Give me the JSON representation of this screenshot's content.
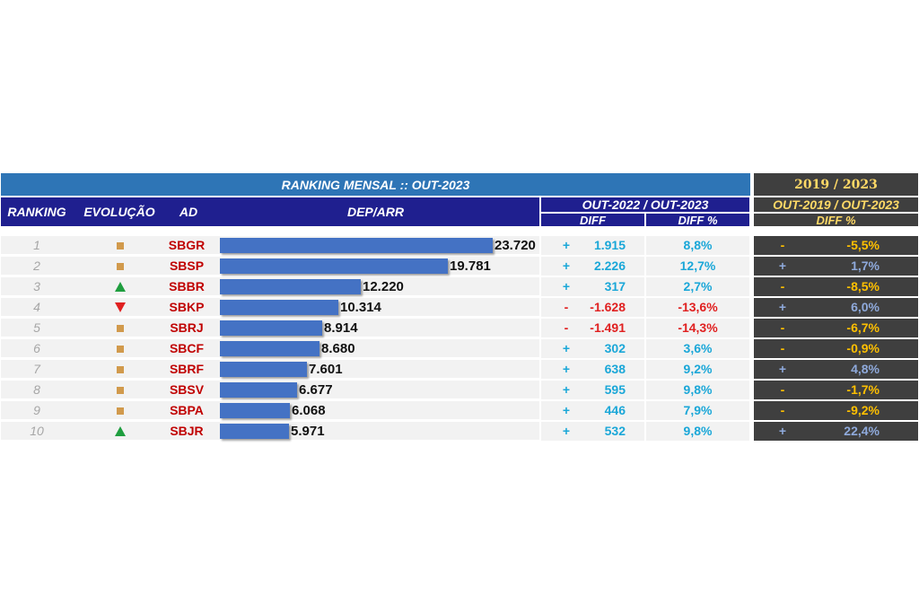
{
  "header": {
    "title": "RANKING MENSAL :: OUT-2023",
    "period_top": "2019 / 2023",
    "columns": {
      "ranking": "RANKING",
      "evolucao": "EVOLUÇÃO",
      "ad": "AD",
      "dep_arr": "DEP/ARR"
    },
    "group_recent": "OUT-2022 / OUT-2023",
    "group_recent_diff": "DIFF",
    "group_recent_pct": "DIFF %",
    "group_long": "OUT-2019 / OUT-2023",
    "group_long_pct": "DIFF %"
  },
  "colors": {
    "bar": "#4472c4",
    "up": "#1f9e3f",
    "down": "#e02020",
    "stable": "#d19a4c",
    "ad": "#c00000",
    "positive": "#1aa7d8",
    "negative": "#e02020",
    "long_positive": "#8faadc",
    "long_negative": "#ffc000"
  },
  "chart_data": {
    "type": "table",
    "title": "RANKING MENSAL :: OUT-2023",
    "columns": [
      "RANKING",
      "EVOLUÇÃO",
      "AD",
      "DEP/ARR",
      "DIFF",
      "DIFF %",
      "DIFF %"
    ],
    "bar_max": 23720,
    "rows": [
      {
        "rank": "1",
        "evolution": "stable",
        "ad": "SBGR",
        "value": 23720,
        "value_label": "23.720",
        "diff_sign": "+",
        "diff": "1.915",
        "diff_pct": "8,8%",
        "long_sign": "-",
        "long_pct": "-5,5%"
      },
      {
        "rank": "2",
        "evolution": "stable",
        "ad": "SBSP",
        "value": 19781,
        "value_label": "19.781",
        "diff_sign": "+",
        "diff": "2.226",
        "diff_pct": "12,7%",
        "long_sign": "+",
        "long_pct": "1,7%"
      },
      {
        "rank": "3",
        "evolution": "up",
        "ad": "SBBR",
        "value": 12220,
        "value_label": "12.220",
        "diff_sign": "+",
        "diff": "317",
        "diff_pct": "2,7%",
        "long_sign": "-",
        "long_pct": "-8,5%"
      },
      {
        "rank": "4",
        "evolution": "down",
        "ad": "SBKP",
        "value": 10314,
        "value_label": "10.314",
        "diff_sign": "-",
        "diff": "-1.628",
        "diff_pct": "-13,6%",
        "long_sign": "+",
        "long_pct": "6,0%"
      },
      {
        "rank": "5",
        "evolution": "stable",
        "ad": "SBRJ",
        "value": 8914,
        "value_label": "8.914",
        "diff_sign": "-",
        "diff": "-1.491",
        "diff_pct": "-14,3%",
        "long_sign": "-",
        "long_pct": "-6,7%"
      },
      {
        "rank": "6",
        "evolution": "stable",
        "ad": "SBCF",
        "value": 8680,
        "value_label": "8.680",
        "diff_sign": "+",
        "diff": "302",
        "diff_pct": "3,6%",
        "long_sign": "-",
        "long_pct": "-0,9%"
      },
      {
        "rank": "7",
        "evolution": "stable",
        "ad": "SBRF",
        "value": 7601,
        "value_label": "7.601",
        "diff_sign": "+",
        "diff": "638",
        "diff_pct": "9,2%",
        "long_sign": "+",
        "long_pct": "4,8%"
      },
      {
        "rank": "8",
        "evolution": "stable",
        "ad": "SBSV",
        "value": 6677,
        "value_label": "6.677",
        "diff_sign": "+",
        "diff": "595",
        "diff_pct": "9,8%",
        "long_sign": "-",
        "long_pct": "-1,7%"
      },
      {
        "rank": "9",
        "evolution": "stable",
        "ad": "SBPA",
        "value": 6068,
        "value_label": "6.068",
        "diff_sign": "+",
        "diff": "446",
        "diff_pct": "7,9%",
        "long_sign": "-",
        "long_pct": "-9,2%"
      },
      {
        "rank": "10",
        "evolution": "up",
        "ad": "SBJR",
        "value": 5971,
        "value_label": "5.971",
        "diff_sign": "+",
        "diff": "532",
        "diff_pct": "9,8%",
        "long_sign": "+",
        "long_pct": "22,4%"
      }
    ]
  }
}
